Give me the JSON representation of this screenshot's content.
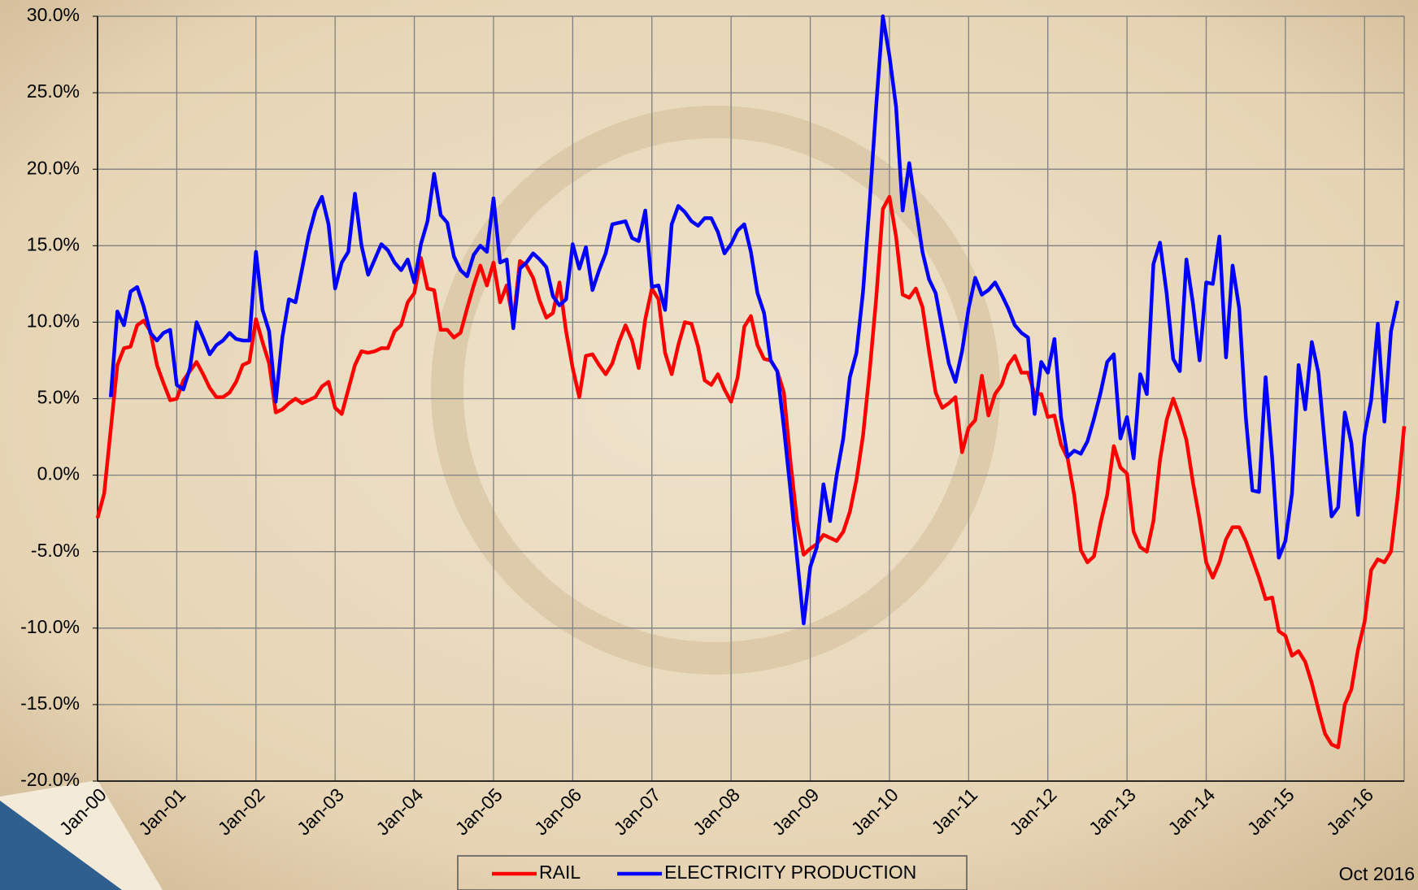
{
  "chart_data": {
    "type": "line",
    "categories": [
      "Jan-00",
      null,
      null,
      null,
      null,
      null,
      null,
      null,
      null,
      null,
      null,
      null,
      "Jan-01",
      null,
      null,
      null,
      null,
      null,
      null,
      null,
      null,
      null,
      null,
      null,
      "Jan-02",
      null,
      null,
      null,
      null,
      null,
      null,
      null,
      null,
      null,
      null,
      null,
      "Jan-03",
      null,
      null,
      null,
      null,
      null,
      null,
      null,
      null,
      null,
      null,
      null,
      "Jan-04",
      null,
      null,
      null,
      null,
      null,
      null,
      null,
      null,
      null,
      null,
      null,
      "Jan-05",
      null,
      null,
      null,
      null,
      null,
      null,
      null,
      null,
      null,
      null,
      null,
      "Jan-06",
      null,
      null,
      null,
      null,
      null,
      null,
      null,
      null,
      null,
      null,
      null,
      "Jan-07",
      null,
      null,
      null,
      null,
      null,
      null,
      null,
      null,
      null,
      null,
      null,
      "Jan-08",
      null,
      null,
      null,
      null,
      null,
      null,
      null,
      null,
      null,
      null,
      null,
      "Jan-09",
      null,
      null,
      null,
      null,
      null,
      null,
      null,
      null,
      null,
      null,
      null,
      "Jan-10",
      null,
      null,
      null,
      null,
      null,
      null,
      null,
      null,
      null,
      null,
      null,
      "Jan-11",
      null,
      null,
      null,
      null,
      null,
      null,
      null,
      null,
      null,
      null,
      null,
      "Jan-12",
      null,
      null,
      null,
      null,
      null,
      null,
      null,
      null,
      null,
      null,
      null,
      "Jan-13",
      null,
      null,
      null,
      null,
      null,
      null,
      null,
      null,
      null,
      null,
      null,
      "Jan-14",
      null,
      null,
      null,
      null,
      null,
      null,
      null,
      null,
      null,
      null,
      null,
      "Jan-15",
      null,
      null,
      null,
      null,
      null,
      null,
      null,
      null,
      null,
      null,
      null,
      "Jan-16",
      null,
      null,
      null,
      null,
      null,
      null
    ],
    "series": [
      {
        "name": "RAIL",
        "color": "#ff0000",
        "values": [
          -2.8,
          -1.2,
          3,
          7.2,
          8.3,
          8.4,
          9.8,
          10.1,
          9.4,
          7.2,
          6,
          4.9,
          5,
          6.2,
          6.8,
          7.4,
          6.6,
          5.7,
          5.1,
          5.1,
          5.4,
          6.1,
          7.2,
          7.4,
          10.2,
          8.7,
          7.3,
          4.1,
          4.3,
          4.7,
          5,
          4.7,
          4.9,
          5.1,
          5.8,
          6.1,
          4.4,
          4,
          5.6,
          7.2,
          8.1,
          8,
          8.1,
          8.3,
          8.3,
          9.4,
          9.8,
          11.3,
          11.9,
          14.2,
          12.2,
          12.1,
          9.5,
          9.5,
          9,
          9.3,
          10.9,
          12.4,
          13.7,
          12.4,
          13.9,
          11.3,
          12.4,
          10,
          14,
          13.7,
          12.9,
          11.4,
          10.3,
          10.6,
          12.6,
          9.4,
          7,
          5.1,
          7.8,
          7.9,
          7.2,
          6.6,
          7.3,
          8.7,
          9.8,
          8.8,
          7,
          10.2,
          12.2,
          11.5,
          8,
          6.6,
          8.5,
          10,
          9.9,
          8.4,
          6.2,
          5.9,
          6.6,
          5.6,
          4.8,
          6.4,
          9.7,
          10.4,
          8.5,
          7.6,
          7.5,
          6.8,
          5.4,
          0.9,
          -3,
          -5.2,
          -4.8,
          -4.5,
          -3.9,
          -4.1,
          -4.3,
          -3.7,
          -2.4,
          -0.3,
          2.6,
          6.8,
          11.6,
          17.4,
          18.2,
          15.6,
          11.8,
          11.6,
          12.2,
          11,
          8.1,
          5.4,
          4.4,
          4.7,
          5.1,
          1.5,
          3.1,
          3.6,
          6.5,
          3.9,
          5.3,
          5.9,
          7.2,
          7.8,
          6.7,
          6.7,
          5.3,
          5.3,
          3.8,
          3.9,
          2,
          1.1,
          -1.3,
          -4.9,
          -5.7,
          -5.3,
          -3.1,
          -1.3,
          1.9,
          0.5,
          0.1,
          -3.7,
          -4.7,
          -5,
          -3,
          1,
          3.6,
          5,
          3.8,
          2.3,
          -0.5,
          -2.9,
          -5.7,
          -6.7,
          -5.7,
          -4.2,
          -3.4,
          -3.4,
          -4.3,
          -5.5,
          -6.7,
          -8.1,
          -8,
          -10.2,
          -10.5,
          -11.8,
          -11.5,
          -12.2,
          -13.6,
          -15.3,
          -16.9,
          -17.6,
          -17.8,
          -15,
          -14,
          -11.4,
          -9.6,
          -6.2,
          -5.5,
          -5.7,
          -5,
          -1.4,
          3.2
        ]
      },
      {
        "name": "ELECTRICITY PRODUCTION",
        "color": "#0000ff",
        "values": [
          null,
          null,
          5.1,
          10.7,
          9.8,
          12,
          12.3,
          11,
          9.3,
          8.8,
          9.3,
          9.5,
          5.9,
          5.6,
          7,
          10,
          9,
          7.9,
          8.5,
          8.8,
          9.3,
          8.9,
          8.8,
          8.8,
          14.6,
          10.8,
          9.4,
          4.8,
          9,
          11.5,
          11.3,
          13.5,
          15.7,
          17.3,
          18.2,
          16.4,
          12.2,
          13.9,
          14.6,
          18.4,
          15,
          13.1,
          14.1,
          15.1,
          14.7,
          13.9,
          13.4,
          14.1,
          12.6,
          15.1,
          16.6,
          19.7,
          17,
          16.5,
          14.3,
          13.4,
          13,
          14.4,
          15,
          14.6,
          18.1,
          13.9,
          14.1,
          9.6,
          13.5,
          13.9,
          14.5,
          14.1,
          13.6,
          11.7,
          11.1,
          11.5,
          15.1,
          13.5,
          14.9,
          12.1,
          13.4,
          14.5,
          16.4,
          16.5,
          16.6,
          15.5,
          15.3,
          17.3,
          12.3,
          12.4,
          10.8,
          16.4,
          17.6,
          17.2,
          16.6,
          16.3,
          16.8,
          16.8,
          15.9,
          14.5,
          15.1,
          16,
          16.4,
          14.6,
          11.9,
          10.6,
          7.5,
          6.8,
          3.1,
          -1,
          -5.4,
          -9.7,
          -6,
          -4.7,
          -0.6,
          -3,
          0,
          2.4,
          6.4,
          8,
          12,
          17.8,
          24.2,
          30,
          27.4,
          24.1,
          17.3,
          20.4,
          17.5,
          14.6,
          12.8,
          11.9,
          9.6,
          7.3,
          6.1,
          8.1,
          10.9,
          12.9,
          11.8,
          12.1,
          12.6,
          11.8,
          10.9,
          9.8,
          9.3,
          9,
          4,
          7.4,
          6.7,
          8.9,
          3.8,
          1.2,
          1.6,
          1.4,
          2.2,
          3.7,
          5.4,
          7.4,
          7.9,
          2.4,
          3.8,
          1.1,
          6.6,
          5.3,
          13.8,
          15.2,
          11.9,
          7.6,
          6.8,
          14.1,
          11.2,
          7.5,
          12.6,
          12.5,
          15.6,
          7.7,
          13.7,
          10.9,
          3.8,
          -1,
          -1.1,
          6.4,
          1.1,
          -5.4,
          -4.3,
          -1.2,
          7.2,
          4.3,
          8.7,
          6.7,
          1.9,
          -2.7,
          -2.1,
          4.1,
          2.1,
          -2.6,
          2.6,
          4.9,
          9.9,
          3.5,
          9.4,
          11.4,
          null
        ]
      }
    ],
    "ylim": [
      -20,
      30
    ],
    "yticks": [
      {
        "value": -20,
        "label": "-20.0%"
      },
      {
        "value": -15,
        "label": "-15.0%"
      },
      {
        "value": -10,
        "label": "-10.0%"
      },
      {
        "value": -5,
        "label": "-5.0%"
      },
      {
        "value": 0,
        "label": "0.0%"
      },
      {
        "value": 5,
        "label": "5.0%"
      },
      {
        "value": 10,
        "label": "10.0%"
      },
      {
        "value": 15,
        "label": "15.0%"
      },
      {
        "value": 20,
        "label": "20.0%"
      },
      {
        "value": 25,
        "label": "25.0%"
      },
      {
        "value": 30,
        "label": "30.0%"
      }
    ],
    "grid": true,
    "legend": "bottom",
    "annotation": "Oct 2016"
  }
}
